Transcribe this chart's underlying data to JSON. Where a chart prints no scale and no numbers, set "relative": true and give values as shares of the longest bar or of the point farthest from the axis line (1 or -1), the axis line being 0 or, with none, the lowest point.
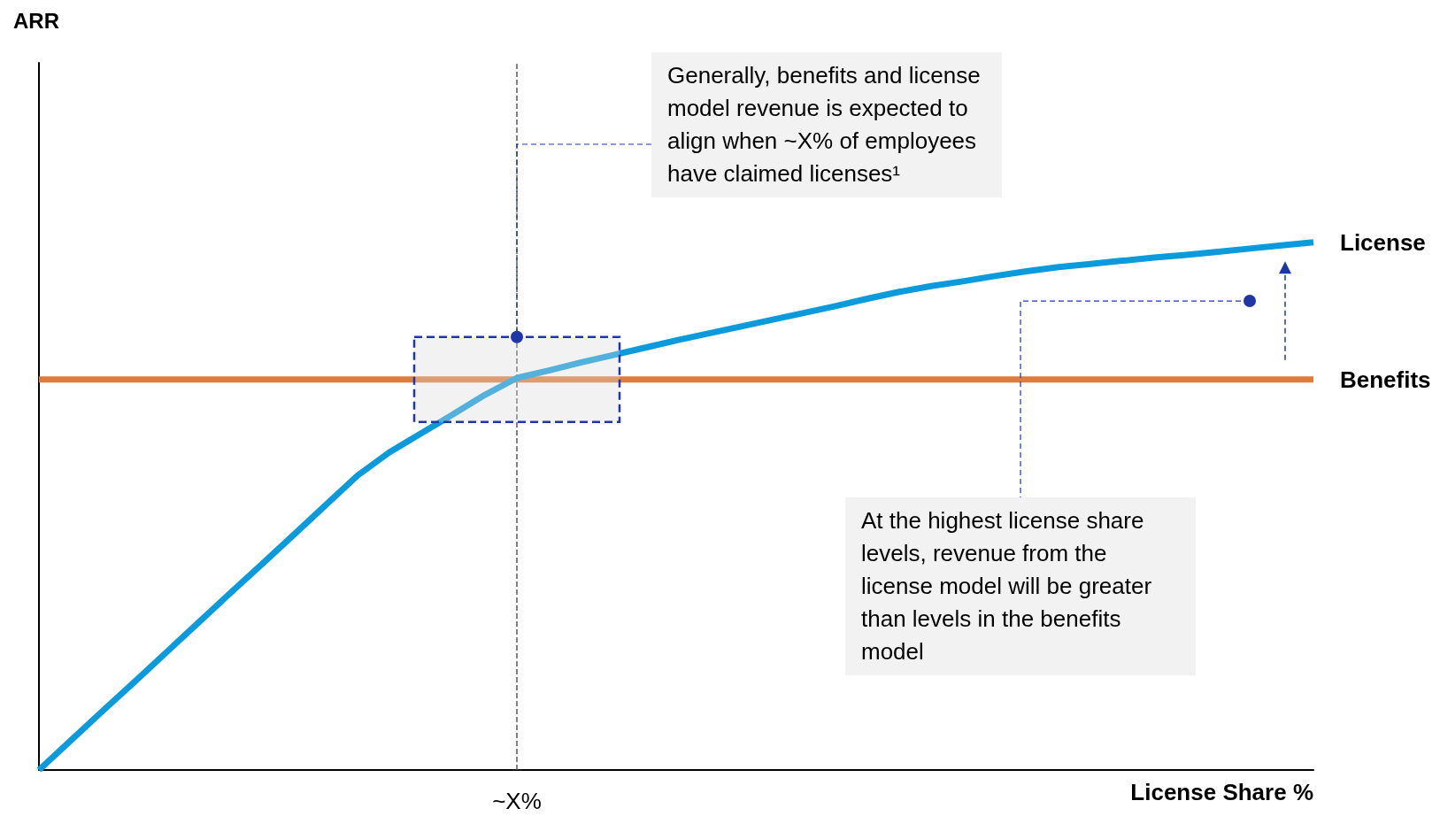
{
  "chart_data": {
    "type": "line",
    "relative": true,
    "xlabel": "License Share %",
    "tick_labels": "x",
    "marker": "none",
    "line_style": "solid",
    "categories": [
      null,
      null,
      null,
      null,
      null,
      null,
      null,
      null,
      null,
      null,
      null,
      null,
      null,
      null,
      null,
      null,
      null,
      null,
      null,
      null,
      null,
      null,
      null,
      null,
      null,
      null,
      null,
      null,
      null,
      null,
      null,
      null,
      null,
      null,
      null,
      null,
      null,
      null,
      null,
      null,
      null
    ],
    "series": [
      {
        "name": "License",
        "color": "#0b9bdc",
        "values": [
          0,
          0.056,
          0.112,
          0.167,
          0.223,
          0.279,
          0.335,
          0.39,
          0.446,
          0.502,
          0.558,
          0.602,
          0.638,
          0.674,
          0.711,
          0.743,
          0.757,
          0.772,
          0.786,
          0.8,
          0.814,
          0.827,
          0.84,
          0.853,
          0.866,
          0.879,
          0.893,
          0.906,
          0.917,
          0.926,
          0.936,
          0.945,
          0.953,
          0.959,
          0.965,
          0.971,
          0.976,
          0.982,
          0.988,
          0.994,
          1
        ]
      },
      {
        "name": "Benefits",
        "color": "#e07b3a",
        "values": [
          0.74,
          0.74,
          0.74,
          0.74,
          0.74,
          0.74,
          0.74,
          0.74,
          0.74,
          0.74,
          0.74,
          0.74,
          0.74,
          0.74,
          0.74,
          0.74,
          0.74,
          0.74,
          0.74,
          0.74,
          0.74,
          0.74,
          0.74,
          0.74,
          0.74,
          0.74,
          0.74,
          0.74,
          0.74,
          0.74,
          0.74,
          0.74,
          0.74,
          0.74,
          0.74,
          0.74,
          0.74,
          0.74,
          0.74,
          0.74,
          0.74
        ]
      }
    ],
    "annotations": [
      "~X%",
      "Generally, benefits and license model revenue is expected to align when ~X% of employees have claimed licenses¹",
      "At the highest license share levels, revenue from the license model will be greater than levels in the benefits model",
      "ARR"
    ]
  }
}
